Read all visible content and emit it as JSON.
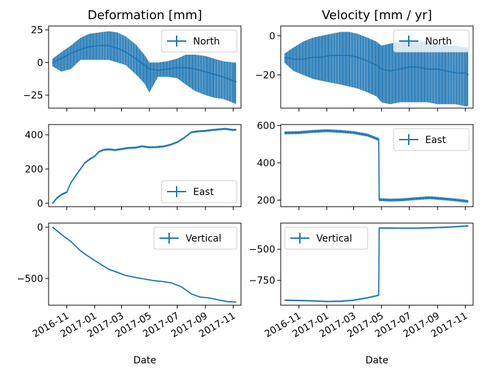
{
  "colors": {
    "series": "#1f77b4",
    "axes": "#000000",
    "legend_border": "#cccccc"
  },
  "columns": [
    {
      "title": "Deformation [mm]"
    },
    {
      "title": "Velocity [mm / yr]"
    }
  ],
  "x_axis": {
    "label": "Date",
    "ticks": [
      "2016-11",
      "2017-01",
      "2017-03",
      "2017-05",
      "2017-07",
      "2017-09",
      "2017-11"
    ],
    "range": [
      "2016-09-22",
      "2017-11-18"
    ]
  },
  "chart_data": [
    {
      "type": "line",
      "column": 0,
      "row": 0,
      "series_name": "North",
      "legend_loc": "upper right",
      "ylim": [
        -35,
        28
      ],
      "yticks": [
        25,
        0,
        -25
      ],
      "error_bars": true,
      "x": [
        "2016-10-01",
        "2016-10-20",
        "2016-11-10",
        "2016-12-01",
        "2016-12-20",
        "2017-01-10",
        "2017-02-01",
        "2017-02-20",
        "2017-03-10",
        "2017-04-01",
        "2017-04-20",
        "2017-05-01",
        "2017-05-20",
        "2017-06-10",
        "2017-07-01",
        "2017-07-20",
        "2017-08-10",
        "2017-09-01",
        "2017-09-20",
        "2017-10-10",
        "2017-11-01",
        "2017-11-08"
      ],
      "y": [
        0,
        3,
        7,
        10,
        12,
        13,
        13,
        11,
        8,
        3,
        -2,
        -5,
        -6,
        -5,
        -4,
        -4,
        -5,
        -7,
        -9,
        -11,
        -14,
        -15
      ],
      "err_low": [
        -3,
        -7,
        -5,
        2,
        2,
        2,
        2,
        0,
        -2,
        -9,
        -16,
        -23,
        -11,
        -11,
        -12,
        -17,
        -22,
        -25,
        -27,
        -28,
        -31,
        -32
      ],
      "err_high": [
        3,
        8,
        13,
        19,
        22,
        23,
        24,
        23,
        20,
        14,
        6,
        0,
        0,
        1,
        3,
        6,
        6,
        5,
        3,
        1,
        0,
        0
      ]
    },
    {
      "type": "line",
      "column": 0,
      "row": 1,
      "series_name": "East",
      "legend_loc": "lower right",
      "ylim": [
        -20,
        460
      ],
      "yticks": [
        400,
        200,
        0
      ],
      "error_bars": true,
      "x": [
        "2016-10-01",
        "2016-10-10",
        "2016-10-20",
        "2016-11-01",
        "2016-11-10",
        "2016-11-20",
        "2016-12-01",
        "2016-12-10",
        "2016-12-20",
        "2017-01-01",
        "2017-01-10",
        "2017-01-20",
        "2017-02-01",
        "2017-02-15",
        "2017-03-01",
        "2017-03-15",
        "2017-04-01",
        "2017-04-15",
        "2017-05-01",
        "2017-05-15",
        "2017-06-01",
        "2017-06-15",
        "2017-07-01",
        "2017-07-15",
        "2017-08-01",
        "2017-08-15",
        "2017-09-01",
        "2017-09-15",
        "2017-10-01",
        "2017-10-15",
        "2017-11-01",
        "2017-11-08"
      ],
      "y": [
        0,
        30,
        50,
        65,
        120,
        160,
        200,
        235,
        255,
        275,
        300,
        312,
        315,
        311,
        317,
        323,
        325,
        333,
        327,
        328,
        332,
        341,
        357,
        380,
        415,
        420,
        423,
        428,
        432,
        435,
        428,
        430
      ],
      "err": 6
    },
    {
      "type": "line",
      "column": 0,
      "row": 2,
      "series_name": "Vertical",
      "legend_loc": "upper right",
      "ylim": [
        -760,
        40
      ],
      "yticks": [
        0,
        -500
      ],
      "error_bars": true,
      "x": [
        "2016-10-01",
        "2016-10-20",
        "2016-11-10",
        "2016-12-01",
        "2016-12-20",
        "2017-01-10",
        "2017-02-01",
        "2017-02-20",
        "2017-03-10",
        "2017-04-01",
        "2017-04-20",
        "2017-05-10",
        "2017-06-01",
        "2017-06-20",
        "2017-07-10",
        "2017-08-01",
        "2017-08-20",
        "2017-09-10",
        "2017-10-01",
        "2017-10-20",
        "2017-11-08"
      ],
      "y": [
        0,
        -70,
        -140,
        -230,
        -290,
        -350,
        -410,
        -440,
        -470,
        -490,
        -505,
        -520,
        -530,
        -545,
        -580,
        -650,
        -680,
        -690,
        -710,
        -725,
        -730
      ],
      "err": 5
    },
    {
      "type": "line",
      "column": 1,
      "row": 0,
      "series_name": "North",
      "legend_loc": "upper right",
      "ylim": [
        -37,
        5
      ],
      "yticks": [
        0,
        -20
      ],
      "error_bars": true,
      "x": [
        "2016-10-01",
        "2016-10-20",
        "2016-11-10",
        "2016-12-01",
        "2016-12-20",
        "2017-01-10",
        "2017-02-01",
        "2017-02-20",
        "2017-03-10",
        "2017-04-01",
        "2017-04-20",
        "2017-05-01",
        "2017-05-20",
        "2017-06-10",
        "2017-07-01",
        "2017-07-20",
        "2017-08-10",
        "2017-09-01",
        "2017-09-20",
        "2017-10-10",
        "2017-11-01",
        "2017-11-08"
      ],
      "y": [
        -11,
        -12,
        -12,
        -11,
        -11,
        -10,
        -10,
        -10,
        -11,
        -13,
        -15,
        -17,
        -18,
        -17,
        -16,
        -16,
        -17,
        -17,
        -18,
        -19,
        -19,
        -20
      ],
      "err_low": [
        -14,
        -18,
        -20,
        -22,
        -23,
        -24,
        -25,
        -26,
        -27,
        -29,
        -31,
        -34,
        -35,
        -34,
        -34,
        -34,
        -34,
        -35,
        -35,
        -35,
        -36,
        -36
      ],
      "err_high": [
        -9,
        -6,
        -3,
        -1,
        0,
        1,
        2,
        2,
        1,
        -1,
        -3,
        -5,
        -4,
        -3,
        -2,
        -3,
        -3,
        -4,
        -5,
        -5,
        -6,
        -6
      ]
    },
    {
      "type": "line",
      "column": 1,
      "row": 1,
      "series_name": "East",
      "legend_loc": "upper right",
      "ylim": [
        165,
        605
      ],
      "yticks": [
        600,
        400,
        200
      ],
      "error_bars": true,
      "x": [
        "2016-10-01",
        "2016-11-01",
        "2016-12-01",
        "2017-01-01",
        "2017-02-01",
        "2017-03-01",
        "2017-04-01",
        "2017-04-25",
        "2017-04-26",
        "2017-05-20",
        "2017-06-15",
        "2017-07-15",
        "2017-08-15",
        "2017-09-15",
        "2017-10-15",
        "2017-11-08"
      ],
      "y": [
        560,
        562,
        568,
        572,
        568,
        562,
        548,
        525,
        203,
        200,
        202,
        208,
        213,
        207,
        200,
        193
      ],
      "err": 8
    },
    {
      "type": "line",
      "column": 1,
      "row": 2,
      "series_name": "Vertical",
      "legend_loc": "upper left",
      "ylim": [
        -950,
        -290
      ],
      "yticks": [
        -500,
        -750
      ],
      "error_bars": true,
      "x": [
        "2016-10-01",
        "2016-11-01",
        "2016-12-01",
        "2017-01-01",
        "2017-02-01",
        "2017-03-01",
        "2017-04-01",
        "2017-04-25",
        "2017-04-26",
        "2017-05-20",
        "2017-06-15",
        "2017-07-15",
        "2017-08-15",
        "2017-09-15",
        "2017-10-15",
        "2017-11-08"
      ],
      "y": [
        -910,
        -912,
        -915,
        -920,
        -918,
        -910,
        -890,
        -870,
        -330,
        -330,
        -331,
        -331,
        -328,
        -324,
        -318,
        -313
      ],
      "err": 6
    }
  ]
}
